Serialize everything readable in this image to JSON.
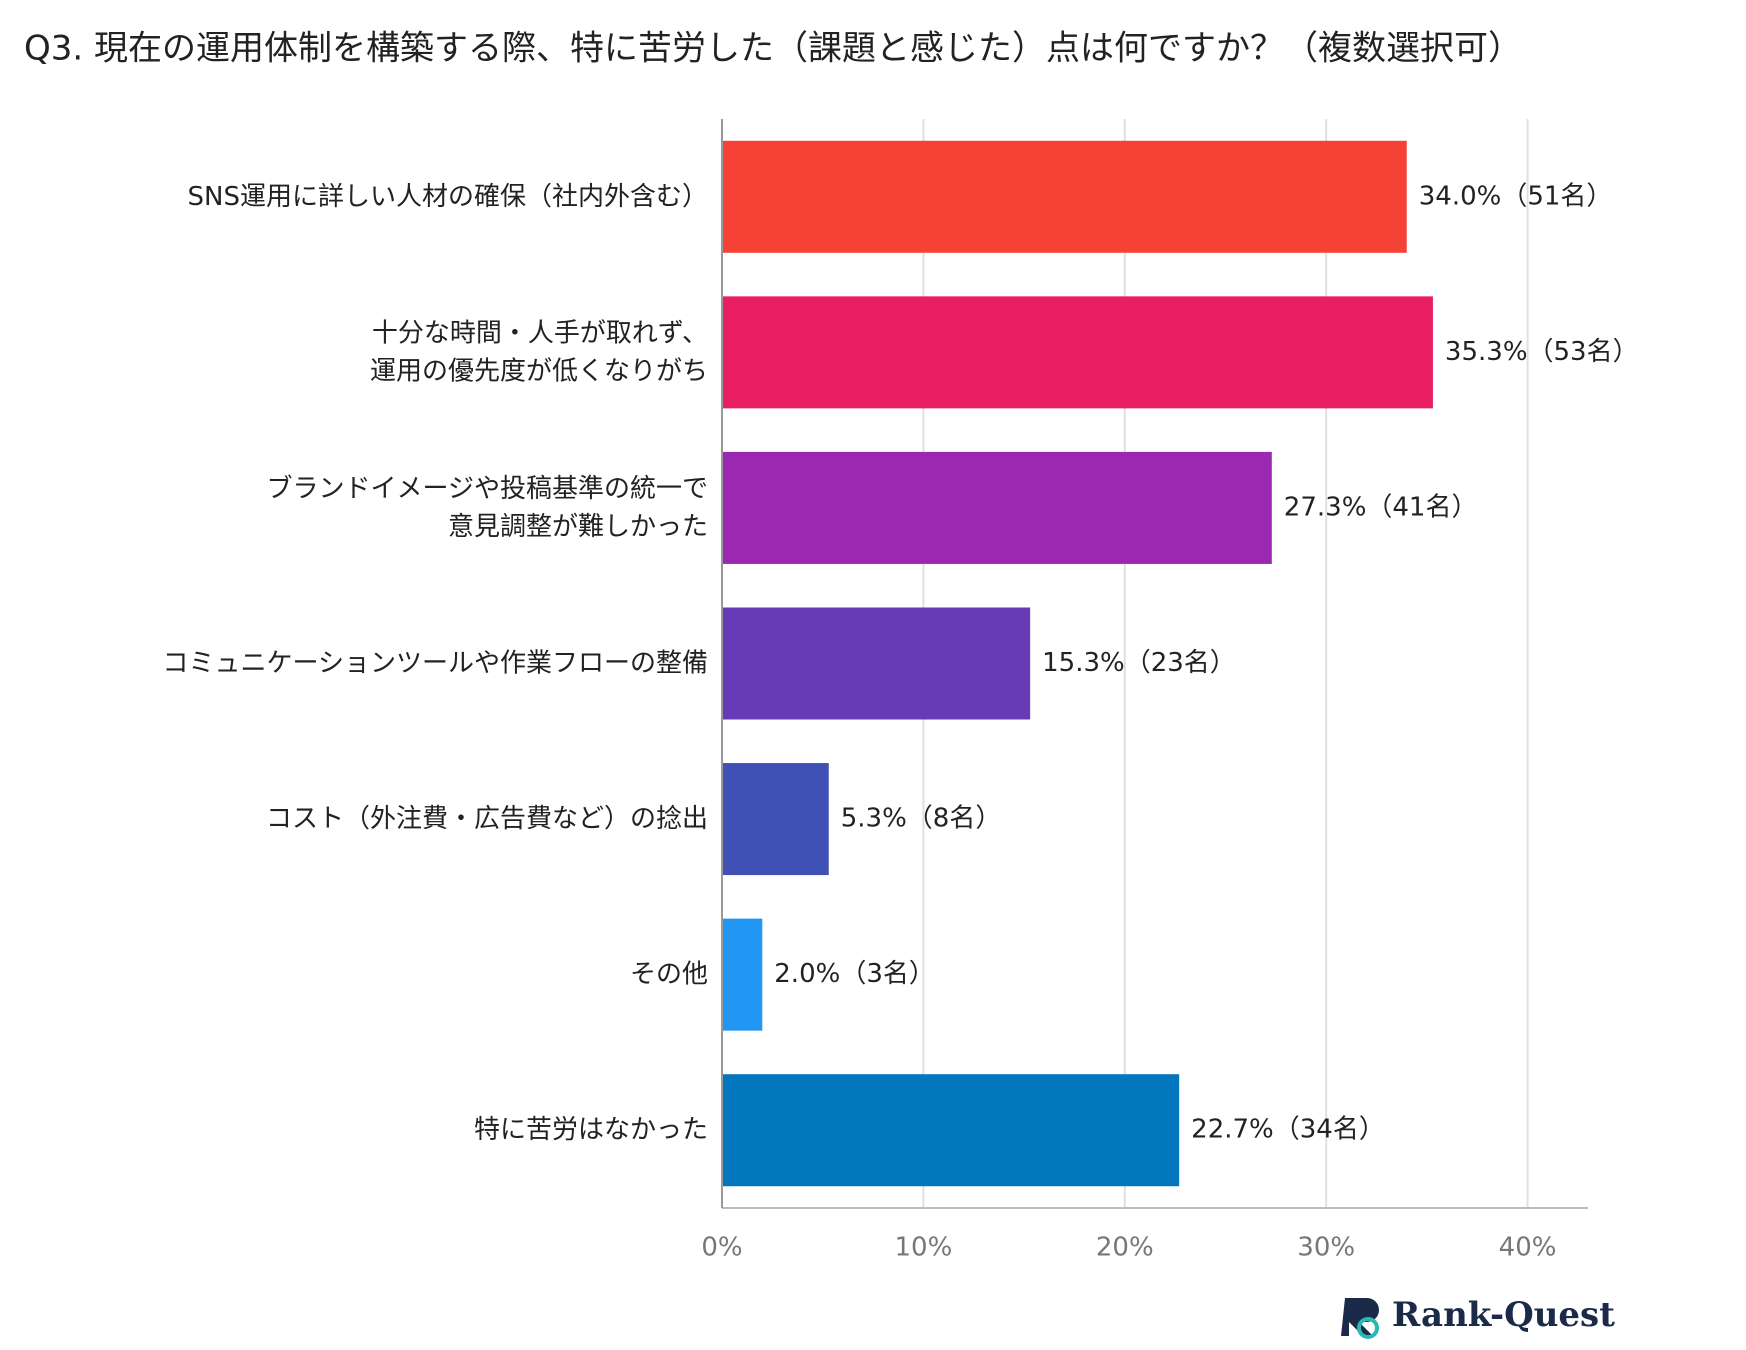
{
  "chart_data": {
    "type": "barh",
    "title": "Q3. 現在の運用体制を構築する際、特に苦労した（課題と感じた）点は何ですか？（複数選択可）",
    "categories": [
      "SNS運用に詳しい人材の確保（社内外含む）",
      "十分な時間・人手が取れず、\n運用の優先度が低くなりがち",
      "ブランドイメージや投稿基準の統一で\n意見調整が難しかった",
      "コミュニケーションツールや作業フローの整備",
      "コスト（外注費・広告費など）の捻出",
      "その他",
      "特に苦労はなかった"
    ],
    "values": [
      34.0,
      35.3,
      27.3,
      15.3,
      5.3,
      2.0,
      22.7
    ],
    "value_labels": [
      "34.0%（51名）",
      "35.3%（53名）",
      "27.3%（41名）",
      "15.3%（23名）",
      "5.3%（8名）",
      "2.0%（3名）",
      "22.7%（34名）"
    ],
    "colors": [
      "#f44336",
      "#e91e63",
      "#9c27b0",
      "#673ab7",
      "#3f51b5",
      "#2196f3",
      "#0277bd"
    ],
    "xlim": [
      0,
      43
    ],
    "xticks": [
      {
        "value": 0,
        "label": "0%"
      },
      {
        "value": 10,
        "label": "10%"
      },
      {
        "value": 20,
        "label": "20%"
      },
      {
        "value": 30,
        "label": "30%"
      },
      {
        "value": 40,
        "label": "40%"
      }
    ],
    "grid": true
  },
  "logo": "Rank-Quest"
}
